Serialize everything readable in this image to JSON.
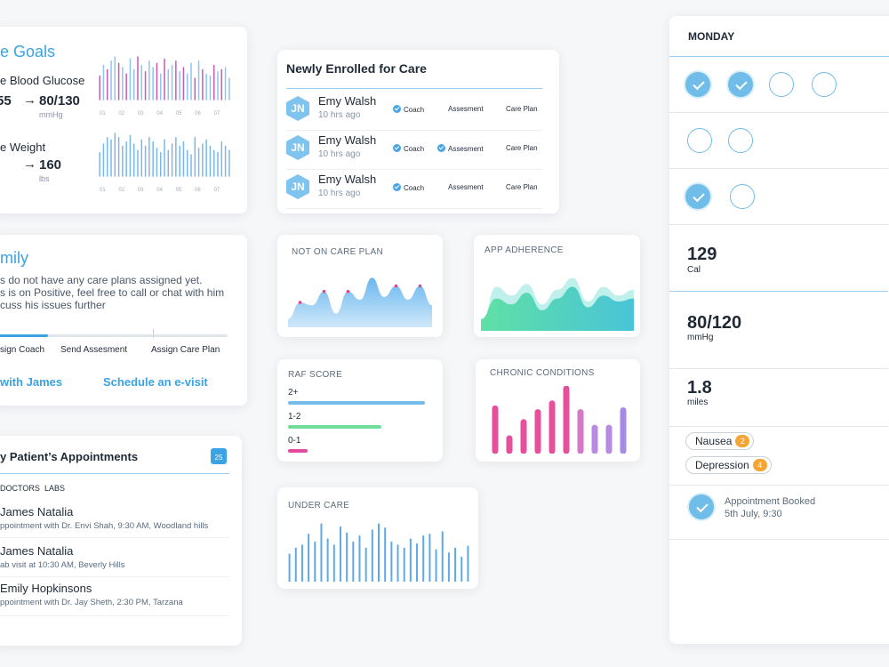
{
  "goals": {
    "title": "e Goals",
    "glucose": {
      "label": "e Blood Glucose",
      "from": "55",
      "to": "80/130",
      "unit": "mmHg"
    },
    "weight": {
      "label": "e Weight",
      "to": "160",
      "unit": "lbs"
    },
    "days": [
      "01",
      "02",
      "03",
      "04",
      "05",
      "06",
      "07"
    ]
  },
  "family": {
    "title": "mily",
    "line1": "s do not have any care plans assigned yet.",
    "line2": "s is on Positive, feel free to call or chat with him",
    "line3": "cuss his issues further",
    "progress": 0.24,
    "steps": [
      "sign Coach",
      "Send Assesment",
      "Assign Care Plan"
    ],
    "link_chat": "with James",
    "link_visit": "Schedule an e-visit"
  },
  "appointments": {
    "title": "y Patient’s Appointments",
    "calendar_day": "25",
    "tabs": [
      "DOCTORS",
      "LABS"
    ],
    "items": [
      {
        "name": "James Natalia",
        "desc": "ppointment with Dr. Envi Shah, 9:30 AM, Woodland hills"
      },
      {
        "name": "James Natalia",
        "desc": "ab visit at 10:30 AM, Beverly Hills"
      },
      {
        "name": "Emily Hopkinsons",
        "desc": "ppointment with Dr. Jay Sheth, 2:30 PM, Tarzana"
      }
    ]
  },
  "enrolled": {
    "title": "Newly Enrolled for Care",
    "steps": [
      "Coach",
      "Assesment",
      "Care Plan"
    ],
    "patients": [
      {
        "initials": "JN",
        "name": "Emy Walsh",
        "time": "10 hrs ago",
        "done": [
          true,
          false,
          false
        ]
      },
      {
        "initials": "JN",
        "name": "Emy Walsh",
        "time": "10 hrs ago",
        "done": [
          true,
          true,
          false
        ]
      },
      {
        "initials": "JN",
        "name": "Emy Walsh",
        "time": "10 hrs ago",
        "done": [
          true,
          false,
          false
        ]
      }
    ]
  },
  "cards": {
    "not_on_care_plan": "NOT ON CARE PLAN",
    "app_adherence": "APP ADHERENCE",
    "raf_score": "RAF SCORE",
    "chronic_conditions": "CHRONIC CONDITIONS",
    "under_care": "UNDER CARE"
  },
  "raf": {
    "rows": [
      {
        "label": "2+",
        "value": 1.0,
        "color": "#74bdea"
      },
      {
        "label": "1-2",
        "value": 0.68,
        "color": "#6fdc98"
      },
      {
        "label": "0-1",
        "value": 0.14,
        "color": "#e04aa0"
      }
    ]
  },
  "right_panel": {
    "day": "MONDAY",
    "checks": [
      [
        true,
        true,
        false,
        false
      ],
      [
        false,
        false
      ],
      [
        true,
        false
      ]
    ],
    "stats": [
      {
        "value": "129",
        "unit": "Cal"
      },
      {
        "value": "80/120",
        "unit": "mmHg"
      },
      {
        "value": "1.8",
        "unit": "miles"
      }
    ],
    "symptoms": [
      {
        "label": "Nausea",
        "count": "2"
      },
      {
        "label": "Depression",
        "count": "4"
      }
    ],
    "appointment": {
      "title": "Appointment Booked",
      "date": "5th July, 9:30"
    }
  },
  "chart_data": [
    {
      "type": "bar",
      "name": "glucose-bars",
      "values": [
        0.55,
        0.8,
        0.7,
        0.9,
        1.0,
        0.85,
        0.75,
        0.6,
        0.95,
        0.7,
        1.0,
        0.8,
        0.65,
        0.9,
        0.75,
        0.85,
        0.6,
        0.95,
        0.7,
        0.8,
        0.9,
        0.65,
        0.75,
        0.6,
        0.85,
        0.5,
        0.9,
        0.7,
        0.6,
        0.55,
        0.8,
        0.65,
        0.7,
        0.75,
        0.5
      ],
      "colors": [
        "#c85ab4",
        "#8fc4ee"
      ]
    },
    {
      "type": "bar",
      "name": "weight-bars",
      "values": [
        0.55,
        0.75,
        0.9,
        0.85,
        1.0,
        0.9,
        0.7,
        0.8,
        0.95,
        0.75,
        0.6,
        0.85,
        0.7,
        0.9,
        0.8,
        0.65,
        0.55,
        0.85,
        0.6,
        0.75,
        0.9,
        0.7,
        0.8,
        0.6,
        0.5,
        0.9,
        0.65,
        0.75,
        0.85,
        0.7,
        0.6,
        0.55,
        0.8,
        0.7,
        0.6
      ]
    },
    {
      "type": "area",
      "name": "not-on-care-plan",
      "values": [
        0.15,
        0.45,
        0.4,
        0.65,
        0.25,
        0.65,
        0.5,
        0.9,
        0.55,
        0.75,
        0.5,
        0.75,
        0.4
      ],
      "markers": [
        1,
        3,
        5,
        9,
        11
      ]
    },
    {
      "type": "area",
      "name": "app-adherence",
      "back": [
        0.1,
        0.75,
        0.6,
        0.8,
        0.45,
        0.7,
        0.9,
        0.5,
        0.75,
        0.6,
        0.7
      ],
      "front": [
        0.2,
        0.55,
        0.45,
        0.65,
        0.35,
        0.55,
        0.75,
        0.4,
        0.6,
        0.5,
        0.55
      ]
    },
    {
      "type": "bar",
      "name": "chronic-conditions",
      "values": [
        0.68,
        0.2,
        0.46,
        0.62,
        0.76,
        1.0,
        0.62,
        0.37,
        0.37,
        0.65
      ],
      "colors": [
        "#e64f9b",
        "#e64f9b",
        "#e64f9b",
        "#e64f9b",
        "#e64f9b",
        "#e64f9b",
        "#d478c8",
        "#b98be0",
        "#b98be0",
        "#a58be4"
      ]
    },
    {
      "type": "bar",
      "name": "under-care",
      "values": [
        0.45,
        0.55,
        0.6,
        0.78,
        0.65,
        0.95,
        0.7,
        0.6,
        0.9,
        0.8,
        0.65,
        0.75,
        0.55,
        0.85,
        0.95,
        0.88,
        0.65,
        0.6,
        0.55,
        0.7,
        0.62,
        0.75,
        0.78,
        0.52,
        0.82,
        0.47,
        0.55,
        0.4,
        0.58
      ]
    }
  ]
}
